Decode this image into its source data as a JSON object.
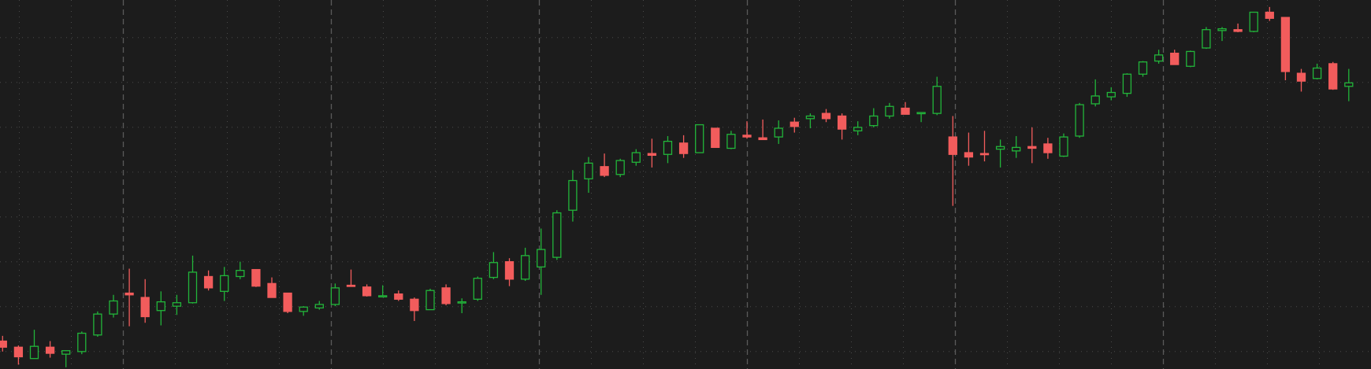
{
  "chart_data": {
    "type": "candlestick",
    "up_color": "#22b53a",
    "down_color": "#f25c5c",
    "background": "#1c1c1c",
    "ylim": [
      0,
      423
    ],
    "open": [
      32,
      25,
      12,
      25,
      17,
      20,
      39,
      63,
      87,
      82,
      67,
      72,
      76,
      106,
      89,
      106,
      114,
      98,
      87,
      66,
      70,
      74,
      96,
      94,
      83,
      86,
      80,
      68,
      93,
      76,
      80,
      105,
      123,
      103,
      117,
      128,
      182,
      218,
      232,
      223,
      237,
      247,
      246,
      259,
      248,
      276,
      253,
      268,
      265,
      266,
      283,
      287,
      293,
      290,
      273,
      279,
      290,
      299,
      293,
      293,
      266,
      248,
      247,
      252,
      250,
      255,
      258,
      244,
      267,
      304,
      312,
      316,
      338,
      353,
      362,
      347,
      368,
      388,
      389,
      387,
      409,
      403,
      339,
      333,
      350,
      324
    ],
    "high": [
      38,
      27,
      45,
      32,
      21,
      43,
      66,
      85,
      115,
      103,
      89,
      85,
      130,
      113,
      117,
      123,
      114,
      105,
      87,
      72,
      78,
      98,
      114,
      97,
      96,
      90,
      82,
      92,
      97,
      81,
      106,
      134,
      127,
      139,
      161,
      182,
      228,
      243,
      247,
      241,
      252,
      264,
      267,
      268,
      280,
      276,
      273,
      284,
      286,
      285,
      288,
      293,
      298,
      293,
      284,
      299,
      305,
      306,
      294,
      335,
      290,
      271,
      273,
      263,
      267,
      277,
      265,
      270,
      305,
      332,
      323,
      339,
      353,
      366,
      366,
      365,
      392,
      392,
      396,
      409,
      415,
      403,
      344,
      350,
      352,
      344
    ],
    "low": [
      20,
      5,
      12,
      13,
      2,
      17,
      37,
      59,
      49,
      53,
      50,
      62,
      75,
      90,
      78,
      103,
      94,
      82,
      64,
      61,
      68,
      72,
      95,
      83,
      82,
      78,
      55,
      68,
      73,
      64,
      78,
      103,
      95,
      101,
      85,
      125,
      169,
      202,
      220,
      220,
      233,
      231,
      236,
      242,
      248,
      254,
      252,
      264,
      263,
      258,
      271,
      276,
      283,
      263,
      268,
      277,
      287,
      292,
      283,
      291,
      187,
      233,
      238,
      231,
      242,
      236,
      241,
      243,
      265,
      301,
      308,
      312,
      335,
      350,
      349,
      346,
      367,
      376,
      386,
      386,
      399,
      331,
      318,
      332,
      320,
      307
    ],
    "close": [
      25,
      14,
      26,
      18,
      21,
      41,
      63,
      78,
      85,
      60,
      77,
      76,
      111,
      93,
      107,
      113,
      95,
      82,
      66,
      71,
      74,
      93,
      95,
      84,
      84,
      80,
      67,
      90,
      75,
      77,
      104,
      122,
      103,
      130,
      137,
      179,
      216,
      236,
      222,
      239,
      248,
      245,
      261,
      247,
      280,
      254,
      269,
      266,
      263,
      276,
      278,
      290,
      287,
      275,
      277,
      290,
      301,
      292,
      294,
      324,
      246,
      243,
      246,
      255,
      254,
      253,
      248,
      266,
      303,
      313,
      317,
      338,
      352,
      360,
      349,
      364,
      389,
      390,
      387,
      409,
      402,
      341,
      330,
      345,
      321,
      328
    ]
  }
}
